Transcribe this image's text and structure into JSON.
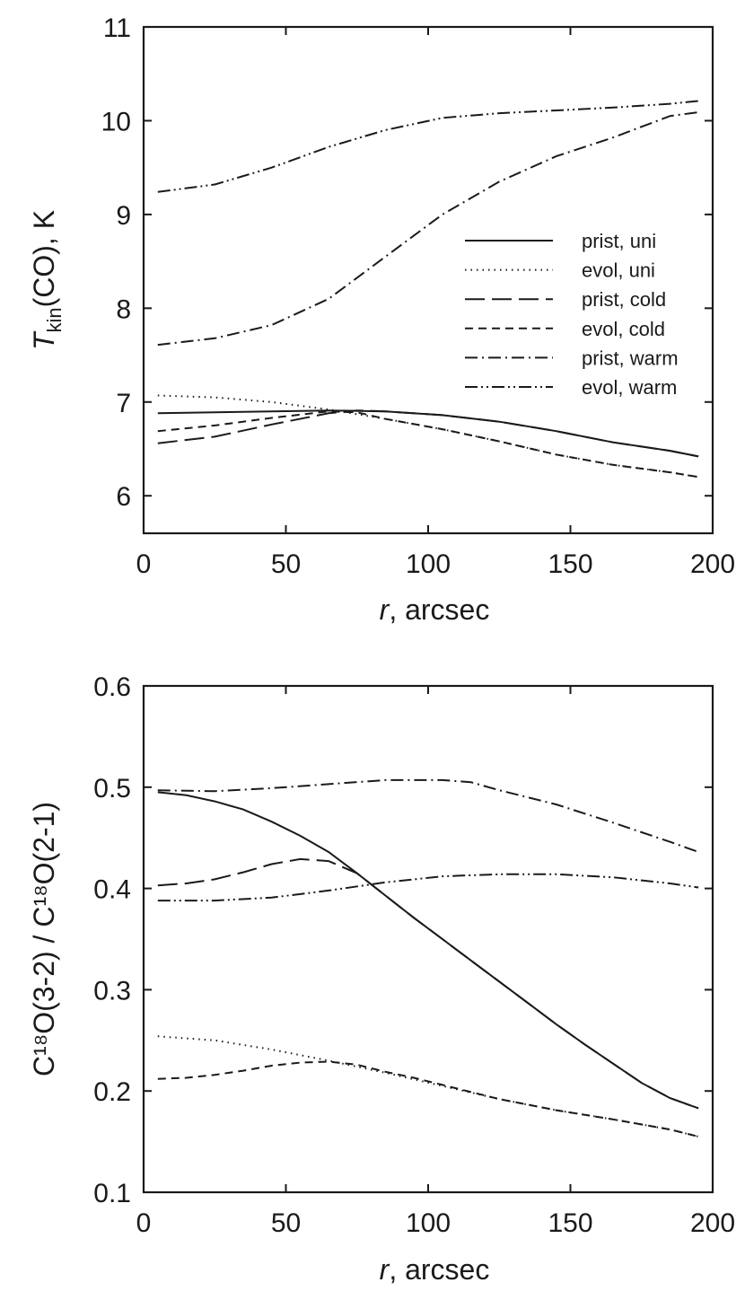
{
  "chart_data": [
    {
      "type": "line",
      "xlabel": "r",
      "xlabel_suffix": ", arcsec",
      "ylabel_main": "T",
      "ylabel_sub": "kin",
      "ylabel_rest": "(CO), K",
      "xlim": [
        0,
        200
      ],
      "ylim": [
        5.6,
        11
      ],
      "xticks": [
        0,
        50,
        100,
        150,
        200
      ],
      "yticks": [
        6,
        7,
        8,
        9,
        10,
        11
      ],
      "xtick_labels": [
        "0",
        "50",
        "100",
        "150",
        "200"
      ],
      "ytick_labels": [
        "6",
        "7",
        "8",
        "9",
        "10",
        "11"
      ],
      "legend_position": "center-right",
      "series": [
        {
          "name": "prist, uni",
          "style": "solid",
          "x": [
            5,
            25,
            45,
            65,
            85,
            105,
            125,
            145,
            165,
            185,
            195
          ],
          "y": [
            6.88,
            6.89,
            6.9,
            6.91,
            6.9,
            6.86,
            6.79,
            6.69,
            6.57,
            6.48,
            6.42
          ]
        },
        {
          "name": "evol, uni",
          "style": "dotted",
          "x": [
            5,
            25,
            45,
            65,
            85,
            105,
            125,
            145,
            165,
            185,
            195
          ],
          "y": [
            7.07,
            7.05,
            7.0,
            6.92,
            6.82,
            6.71,
            6.58,
            6.44,
            6.33,
            6.25,
            6.2
          ]
        },
        {
          "name": "prist, cold",
          "style": "longdash",
          "x": [
            5,
            25,
            45,
            65,
            75,
            85,
            105,
            125,
            145,
            165,
            185,
            195
          ],
          "y": [
            6.56,
            6.63,
            6.76,
            6.88,
            6.91,
            6.9,
            6.86,
            6.79,
            6.69,
            6.57,
            6.48,
            6.42
          ]
        },
        {
          "name": "evol, cold",
          "style": "dash",
          "x": [
            5,
            25,
            45,
            65,
            75,
            85,
            105,
            125,
            145,
            165,
            185,
            195
          ],
          "y": [
            6.69,
            6.75,
            6.83,
            6.9,
            6.89,
            6.82,
            6.71,
            6.58,
            6.44,
            6.33,
            6.25,
            6.2
          ]
        },
        {
          "name": "prist, warm",
          "style": "dashdot",
          "x": [
            5,
            25,
            45,
            65,
            85,
            105,
            125,
            145,
            165,
            185,
            195
          ],
          "y": [
            7.61,
            7.68,
            7.82,
            8.1,
            8.55,
            9.0,
            9.35,
            9.62,
            9.82,
            10.05,
            10.09
          ]
        },
        {
          "name": "evol, warm",
          "style": "dashdotdot",
          "x": [
            5,
            25,
            45,
            65,
            85,
            105,
            125,
            145,
            165,
            185,
            195
          ],
          "y": [
            9.24,
            9.32,
            9.5,
            9.72,
            9.9,
            10.03,
            10.08,
            10.11,
            10.14,
            10.18,
            10.21
          ]
        }
      ]
    },
    {
      "type": "line",
      "xlabel": "r",
      "xlabel_suffix": ", arcsec",
      "ylabel": "C¹⁸O(3-2) / C¹⁸O(2-1)",
      "xlim": [
        0,
        200
      ],
      "ylim": [
        0.1,
        0.6
      ],
      "xticks": [
        0,
        50,
        100,
        150,
        200
      ],
      "yticks": [
        0.1,
        0.2,
        0.3,
        0.4,
        0.5,
        0.6
      ],
      "xtick_labels": [
        "0",
        "50",
        "100",
        "150",
        "200"
      ],
      "ytick_labels": [
        "0.1",
        "0.2",
        "0.3",
        "0.4",
        "0.5",
        "0.6"
      ],
      "series": [
        {
          "name": "prist, uni",
          "style": "solid",
          "x": [
            5,
            15,
            25,
            35,
            45,
            55,
            65,
            75,
            85,
            95,
            105,
            115,
            125,
            135,
            145,
            155,
            165,
            175,
            185,
            195
          ],
          "y": [
            0.495,
            0.492,
            0.486,
            0.478,
            0.466,
            0.452,
            0.436,
            0.415,
            0.393,
            0.371,
            0.35,
            0.329,
            0.308,
            0.287,
            0.266,
            0.246,
            0.227,
            0.208,
            0.193,
            0.183
          ]
        },
        {
          "name": "evol, uni",
          "style": "dotted",
          "x": [
            5,
            25,
            45,
            65,
            85,
            105,
            125,
            145,
            165,
            185,
            195
          ],
          "y": [
            0.254,
            0.25,
            0.241,
            0.23,
            0.218,
            0.205,
            0.192,
            0.181,
            0.172,
            0.162,
            0.155
          ]
        },
        {
          "name": "prist, cold",
          "style": "longdash",
          "x": [
            5,
            15,
            25,
            35,
            45,
            55,
            65,
            75,
            85,
            95,
            105,
            115,
            125,
            135,
            145,
            155,
            165,
            175,
            185,
            195
          ],
          "y": [
            0.403,
            0.405,
            0.409,
            0.416,
            0.424,
            0.429,
            0.427,
            0.415,
            0.393,
            0.371,
            0.35,
            0.329,
            0.308,
            0.287,
            0.266,
            0.246,
            0.227,
            0.208,
            0.193,
            0.183
          ]
        },
        {
          "name": "evol, cold",
          "style": "dash",
          "x": [
            5,
            15,
            25,
            35,
            45,
            55,
            65,
            75,
            85,
            95,
            105,
            125,
            145,
            165,
            185,
            195
          ],
          "y": [
            0.212,
            0.213,
            0.216,
            0.22,
            0.225,
            0.228,
            0.229,
            0.226,
            0.219,
            0.213,
            0.206,
            0.192,
            0.181,
            0.172,
            0.162,
            0.155
          ]
        },
        {
          "name": "prist, warm",
          "style": "dashdot",
          "x": [
            5,
            25,
            45,
            65,
            85,
            105,
            115,
            125,
            145,
            165,
            185,
            195
          ],
          "y": [
            0.497,
            0.496,
            0.499,
            0.503,
            0.507,
            0.507,
            0.505,
            0.497,
            0.483,
            0.465,
            0.446,
            0.436
          ]
        },
        {
          "name": "evol, warm",
          "style": "dashdotdot",
          "x": [
            5,
            25,
            45,
            65,
            85,
            105,
            125,
            145,
            165,
            185,
            195
          ],
          "y": [
            0.388,
            0.388,
            0.391,
            0.398,
            0.406,
            0.412,
            0.414,
            0.414,
            0.411,
            0.405,
            0.401
          ]
        }
      ]
    }
  ]
}
